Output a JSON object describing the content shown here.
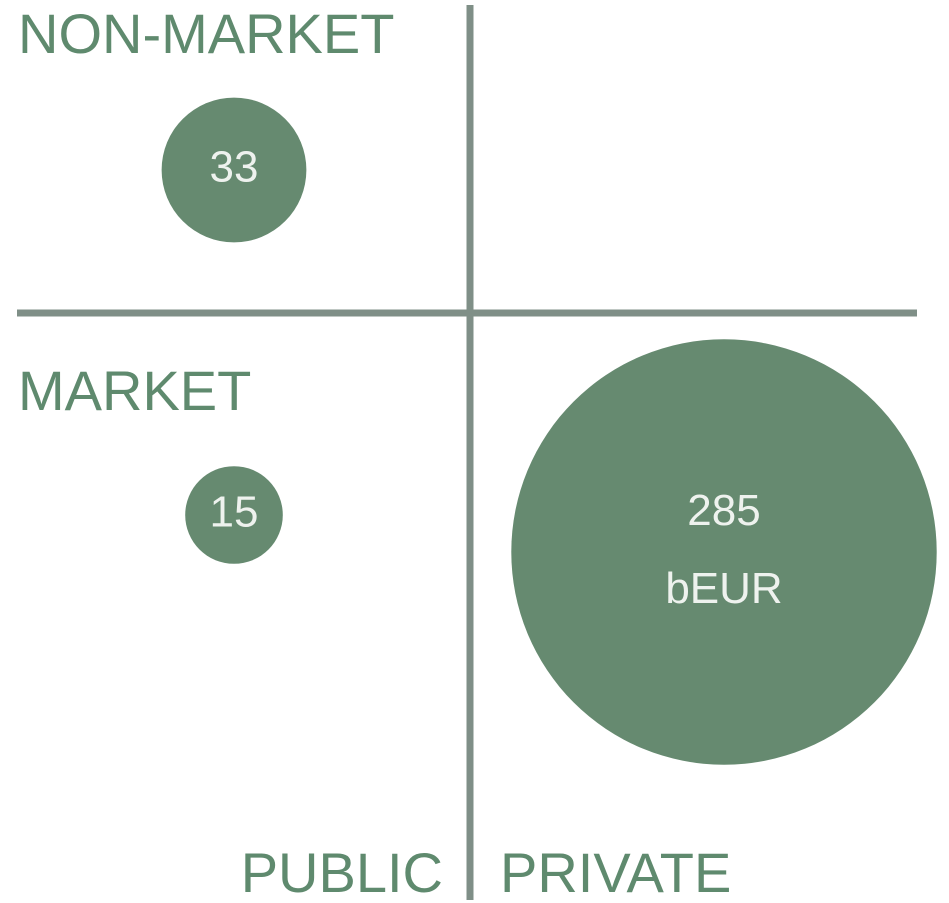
{
  "chart_data": {
    "type": "quadrant-bubble",
    "x_categories": [
      "PUBLIC",
      "PRIVATE"
    ],
    "y_categories": [
      "NON-MARKET",
      "MARKET"
    ],
    "x": [
      "PUBLIC",
      "PUBLIC",
      "PRIVATE"
    ],
    "y": [
      "NON-MARKET",
      "MARKET",
      "MARKET"
    ],
    "values": [
      33,
      15,
      285
    ],
    "value_labels": [
      "33",
      "15",
      "285 bEUR"
    ],
    "color": "#668a70"
  }
}
